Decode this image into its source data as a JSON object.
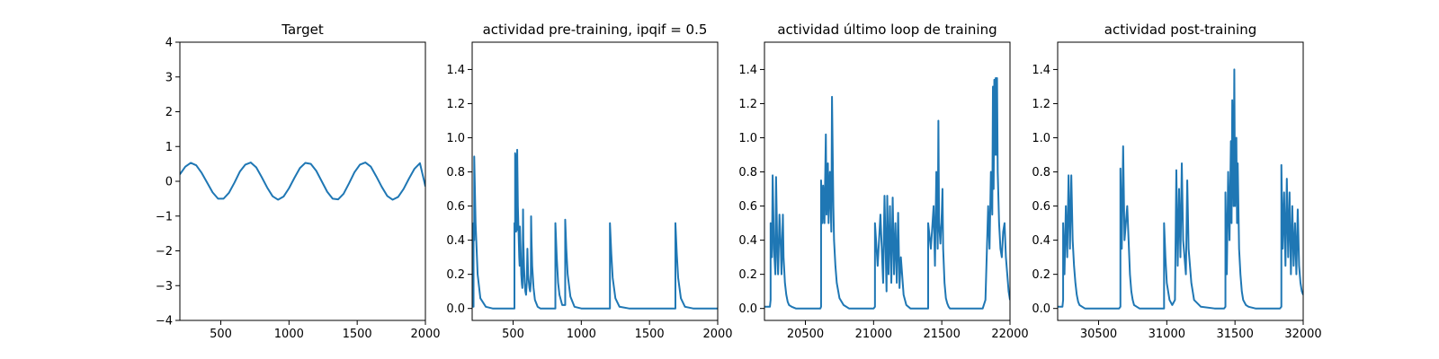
{
  "style": {
    "line_color": "#1f77b4",
    "axes_color": "#000000",
    "background": "#ffffff"
  },
  "chart_data": [
    {
      "type": "line",
      "title": "Target",
      "xlabel": "",
      "ylabel": "",
      "xlim": [
        200,
        2000
      ],
      "ylim": [
        -4,
        4
      ],
      "xticks": [
        500,
        1000,
        1500,
        2000
      ],
      "yticks": [
        -4,
        -3,
        -2,
        -1,
        0,
        1,
        2,
        3,
        4
      ],
      "grid": false,
      "series": [
        {
          "x": [
            200,
            240,
            280,
            320,
            360,
            400,
            440,
            480,
            520,
            560,
            600,
            640,
            680,
            720,
            760,
            800,
            840,
            880,
            920,
            960,
            1000,
            1040,
            1080,
            1120,
            1160,
            1200,
            1240,
            1280,
            1320,
            1360,
            1400,
            1440,
            1480,
            1520,
            1560,
            1600,
            1640,
            1680,
            1720,
            1760,
            1800,
            1840,
            1880,
            1920,
            1960,
            2000
          ],
          "values": [
            0.2,
            0.42,
            0.53,
            0.46,
            0.24,
            -0.04,
            -0.32,
            -0.5,
            -0.5,
            -0.33,
            -0.04,
            0.28,
            0.48,
            0.54,
            0.4,
            0.12,
            -0.18,
            -0.43,
            -0.53,
            -0.44,
            -0.2,
            0.1,
            0.38,
            0.53,
            0.5,
            0.3,
            0.0,
            -0.3,
            -0.5,
            -0.52,
            -0.36,
            -0.06,
            0.26,
            0.48,
            0.54,
            0.42,
            0.14,
            -0.16,
            -0.42,
            -0.53,
            -0.45,
            -0.22,
            0.08,
            0.36,
            0.52,
            -0.15
          ]
        }
      ]
    },
    {
      "type": "line",
      "title": "actividad pre-training, ipqif = 0.5",
      "xlabel": "",
      "ylabel": "",
      "xlim": [
        200,
        2000
      ],
      "ylim": [
        -0.07,
        1.56
      ],
      "xticks": [
        500,
        1000,
        1500,
        2000
      ],
      "yticks": [
        0.0,
        0.2,
        0.4,
        0.6,
        0.8,
        1.0,
        1.2,
        1.4
      ],
      "yticklabels": [
        "0.0",
        "0.2",
        "0.4",
        "0.6",
        "0.8",
        "1.0",
        "1.2",
        "1.4"
      ],
      "grid": false,
      "series": [
        {
          "x": [
            200,
            210,
            210,
            215,
            215,
            225,
            240,
            260,
            300,
            350,
            400,
            450,
            505,
            510,
            510,
            515,
            515,
            520,
            522,
            525,
            525,
            530,
            530,
            535,
            540,
            545,
            548,
            550,
            555,
            560,
            565,
            568,
            570,
            573,
            575,
            580,
            585,
            590,
            595,
            600,
            605,
            610,
            620,
            625,
            630,
            632,
            635,
            640,
            650,
            660,
            680,
            700,
            740,
            800,
            810,
            810,
            820,
            830,
            840,
            860,
            880,
            882,
            882,
            890,
            900,
            920,
            950,
            1000,
            1100,
            1200,
            1210,
            1210,
            1220,
            1230,
            1250,
            1280,
            1350,
            1450,
            1600,
            1680,
            1690,
            1690,
            1700,
            1710,
            1730,
            1760,
            1820,
            1900,
            2000
          ],
          "values": [
            0.01,
            0.01,
            0.5,
            0.4,
            0.89,
            0.5,
            0.2,
            0.06,
            0.01,
            0.0,
            0.0,
            0.0,
            0.0,
            0.0,
            0.5,
            0.45,
            0.91,
            0.5,
            0.45,
            0.9,
            0.5,
            0.46,
            0.93,
            0.6,
            0.45,
            0.3,
            0.25,
            0.48,
            0.35,
            0.2,
            0.14,
            0.12,
            0.2,
            0.58,
            0.4,
            0.25,
            0.15,
            0.1,
            0.08,
            0.15,
            0.35,
            0.2,
            0.12,
            0.1,
            0.15,
            0.54,
            0.4,
            0.25,
            0.12,
            0.05,
            0.01,
            0.0,
            0.0,
            0.0,
            0.0,
            0.5,
            0.3,
            0.15,
            0.08,
            0.02,
            0.02,
            0.02,
            0.52,
            0.35,
            0.2,
            0.07,
            0.01,
            0.0,
            0.0,
            0.0,
            0.0,
            0.5,
            0.32,
            0.18,
            0.06,
            0.01,
            0.0,
            0.0,
            0.0,
            0.0,
            0.0,
            0.5,
            0.32,
            0.18,
            0.06,
            0.01,
            0.0,
            0.0,
            0.0
          ]
        }
      ]
    },
    {
      "type": "line",
      "title": "actividad último loop de training",
      "xlabel": "",
      "ylabel": "",
      "xlim": [
        20200,
        22000
      ],
      "ylim": [
        -0.07,
        1.56
      ],
      "xticks": [
        20500,
        21000,
        21500,
        22000
      ],
      "yticks": [
        0.0,
        0.2,
        0.4,
        0.6,
        0.8,
        1.0,
        1.2,
        1.4
      ],
      "yticklabels": [
        "0.0",
        "0.2",
        "0.4",
        "0.6",
        "0.8",
        "1.0",
        "1.2",
        "1.4"
      ],
      "grid": false,
      "series": [
        {
          "x": [
            20200,
            20240,
            20245,
            20245,
            20255,
            20260,
            20270,
            20280,
            20285,
            20295,
            20300,
            20310,
            20320,
            20325,
            20335,
            20340,
            20350,
            20360,
            20370,
            20380,
            20400,
            20430,
            20480,
            20550,
            20610,
            20615,
            20615,
            20625,
            20630,
            20640,
            20650,
            20655,
            20665,
            20670,
            20680,
            20690,
            20695,
            20705,
            20710,
            20720,
            20730,
            20750,
            20780,
            20820,
            20860,
            20920,
            21000,
            21010,
            21010,
            21030,
            21050,
            21070,
            21080,
            21095,
            21100,
            21110,
            21120,
            21130,
            21140,
            21150,
            21160,
            21170,
            21180,
            21190,
            21200,
            21220,
            21240,
            21270,
            21310,
            21360,
            21400,
            21400,
            21420,
            21440,
            21450,
            21460,
            21470,
            21475,
            21480,
            21490,
            21500,
            21505,
            21510,
            21520,
            21530,
            21540,
            21550,
            21560,
            21580,
            21600,
            21640,
            21700,
            21760,
            21800,
            21820,
            21840,
            21850,
            21860,
            21870,
            21875,
            21880,
            21885,
            21890,
            21895,
            21900,
            21905,
            21910,
            21920,
            21930,
            21940,
            21950,
            21960,
            21970,
            21980,
            21990,
            22000
          ],
          "values": [
            0.01,
            0.01,
            0.05,
            0.5,
            0.3,
            0.78,
            0.35,
            0.2,
            0.77,
            0.3,
            0.2,
            0.55,
            0.35,
            0.2,
            0.55,
            0.3,
            0.15,
            0.08,
            0.04,
            0.02,
            0.01,
            0.0,
            0.0,
            0.0,
            0.0,
            0.01,
            0.75,
            0.5,
            0.72,
            0.5,
            1.02,
            0.55,
            0.85,
            0.5,
            0.8,
            0.45,
            1.24,
            0.6,
            0.4,
            0.25,
            0.15,
            0.06,
            0.02,
            0.0,
            0.0,
            0.0,
            0.0,
            0.01,
            0.5,
            0.25,
            0.55,
            0.15,
            0.66,
            0.1,
            0.66,
            0.2,
            0.6,
            0.15,
            0.65,
            0.2,
            0.5,
            0.15,
            0.56,
            0.12,
            0.3,
            0.08,
            0.02,
            0.0,
            0.0,
            0.0,
            0.0,
            0.5,
            0.35,
            0.6,
            0.25,
            0.8,
            0.35,
            1.1,
            0.5,
            0.38,
            0.56,
            0.7,
            0.35,
            0.15,
            0.06,
            0.03,
            0.01,
            0.0,
            0.0,
            0.0,
            0.0,
            0.0,
            0.0,
            0.0,
            0.05,
            0.6,
            0.35,
            0.8,
            0.55,
            1.3,
            0.7,
            1.34,
            0.9,
            1.35,
            0.9,
            1.35,
            0.8,
            0.5,
            0.35,
            0.3,
            0.45,
            0.5,
            0.3,
            0.2,
            0.1,
            0.05
          ]
        }
      ]
    },
    {
      "type": "line",
      "title": "actividad post-training",
      "xlabel": "",
      "ylabel": "",
      "xlim": [
        30200,
        32000
      ],
      "ylim": [
        -0.07,
        1.56
      ],
      "xticks": [
        30500,
        31000,
        31500,
        32000
      ],
      "yticks": [
        0.0,
        0.2,
        0.4,
        0.6,
        0.8,
        1.0,
        1.2,
        1.4
      ],
      "yticklabels": [
        "0.0",
        "0.2",
        "0.4",
        "0.6",
        "0.8",
        "1.0",
        "1.2",
        "1.4"
      ],
      "grid": false,
      "series": [
        {
          "x": [
            30200,
            30235,
            30240,
            30240,
            30250,
            30260,
            30270,
            30280,
            30290,
            30300,
            30310,
            30320,
            30330,
            30340,
            30350,
            30360,
            30380,
            30400,
            30450,
            30550,
            30650,
            30660,
            30660,
            30670,
            30680,
            30690,
            30700,
            30710,
            30720,
            30730,
            30740,
            30750,
            30760,
            30780,
            30800,
            30850,
            30950,
            30980,
            30980,
            30990,
            31000,
            31020,
            31040,
            31060,
            31070,
            31080,
            31090,
            31100,
            31110,
            31120,
            31140,
            31150,
            31160,
            31180,
            31200,
            31250,
            31350,
            31420,
            31430,
            31430,
            31440,
            31450,
            31460,
            31470,
            31475,
            31480,
            31490,
            31495,
            31500,
            31510,
            31515,
            31520,
            31530,
            31540,
            31550,
            31560,
            31580,
            31600,
            31650,
            31750,
            31830,
            31840,
            31840,
            31850,
            31860,
            31870,
            31880,
            31890,
            31900,
            31910,
            31920,
            31930,
            31940,
            31950,
            31960,
            31970,
            31980,
            31990,
            32000
          ],
          "values": [
            0.01,
            0.01,
            0.05,
            0.5,
            0.2,
            0.6,
            0.3,
            0.78,
            0.35,
            0.78,
            0.4,
            0.25,
            0.15,
            0.08,
            0.04,
            0.02,
            0.01,
            0.0,
            0.0,
            0.0,
            0.0,
            0.01,
            0.82,
            0.35,
            0.95,
            0.4,
            0.5,
            0.6,
            0.4,
            0.2,
            0.1,
            0.05,
            0.02,
            0.01,
            0.0,
            0.0,
            0.0,
            0.0,
            0.5,
            0.3,
            0.15,
            0.05,
            0.02,
            0.05,
            0.81,
            0.25,
            0.7,
            0.3,
            0.85,
            0.4,
            0.2,
            0.75,
            0.35,
            0.15,
            0.05,
            0.01,
            0.0,
            0.0,
            0.01,
            0.68,
            0.2,
            0.8,
            0.4,
            0.98,
            0.5,
            1.22,
            0.6,
            1.4,
            0.6,
            1.0,
            0.5,
            0.85,
            0.35,
            0.2,
            0.1,
            0.05,
            0.02,
            0.01,
            0.0,
            0.0,
            0.0,
            0.01,
            0.84,
            0.35,
            0.68,
            0.25,
            0.76,
            0.3,
            0.68,
            0.2,
            0.6,
            0.25,
            0.5,
            0.2,
            0.58,
            0.25,
            0.15,
            0.1,
            0.08
          ]
        }
      ]
    }
  ]
}
